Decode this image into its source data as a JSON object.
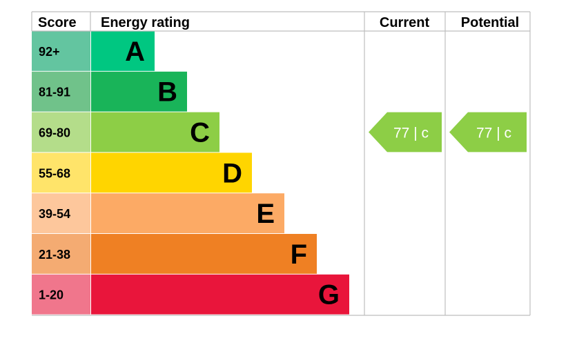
{
  "chart_data": {
    "type": "table",
    "headers": {
      "score": "Score",
      "rating": "Energy rating",
      "current": "Current",
      "potential": "Potential"
    },
    "bands": [
      {
        "score": "92+",
        "letter": "A",
        "color": "#00c781",
        "score_bg": "#63c5a0",
        "letter_color": "#000000"
      },
      {
        "score": "81-91",
        "letter": "B",
        "color": "#19b459",
        "score_bg": "#70c28a",
        "letter_color": "#000000"
      },
      {
        "score": "69-80",
        "letter": "C",
        "color": "#8dce46",
        "score_bg": "#b4dd8a",
        "letter_color": "#000000"
      },
      {
        "score": "55-68",
        "letter": "D",
        "color": "#ffd500",
        "score_bg": "#ffe46a",
        "letter_color": "#000000"
      },
      {
        "score": "39-54",
        "letter": "E",
        "color": "#fcaa65",
        "score_bg": "#fdc79c",
        "letter_color": "#000000"
      },
      {
        "score": "21-38",
        "letter": "F",
        "color": "#ef8023",
        "score_bg": "#f4ab72",
        "letter_color": "#000000"
      },
      {
        "score": "1-20",
        "letter": "G",
        "color": "#e9153b",
        "score_bg": "#f0768c",
        "letter_color": "#000000"
      }
    ],
    "current": {
      "value": 77,
      "band": "c",
      "label": "77 | c",
      "color": "#8dce46"
    },
    "potential": {
      "value": 77,
      "band": "c",
      "label": "77 | c",
      "color": "#8dce46"
    }
  }
}
